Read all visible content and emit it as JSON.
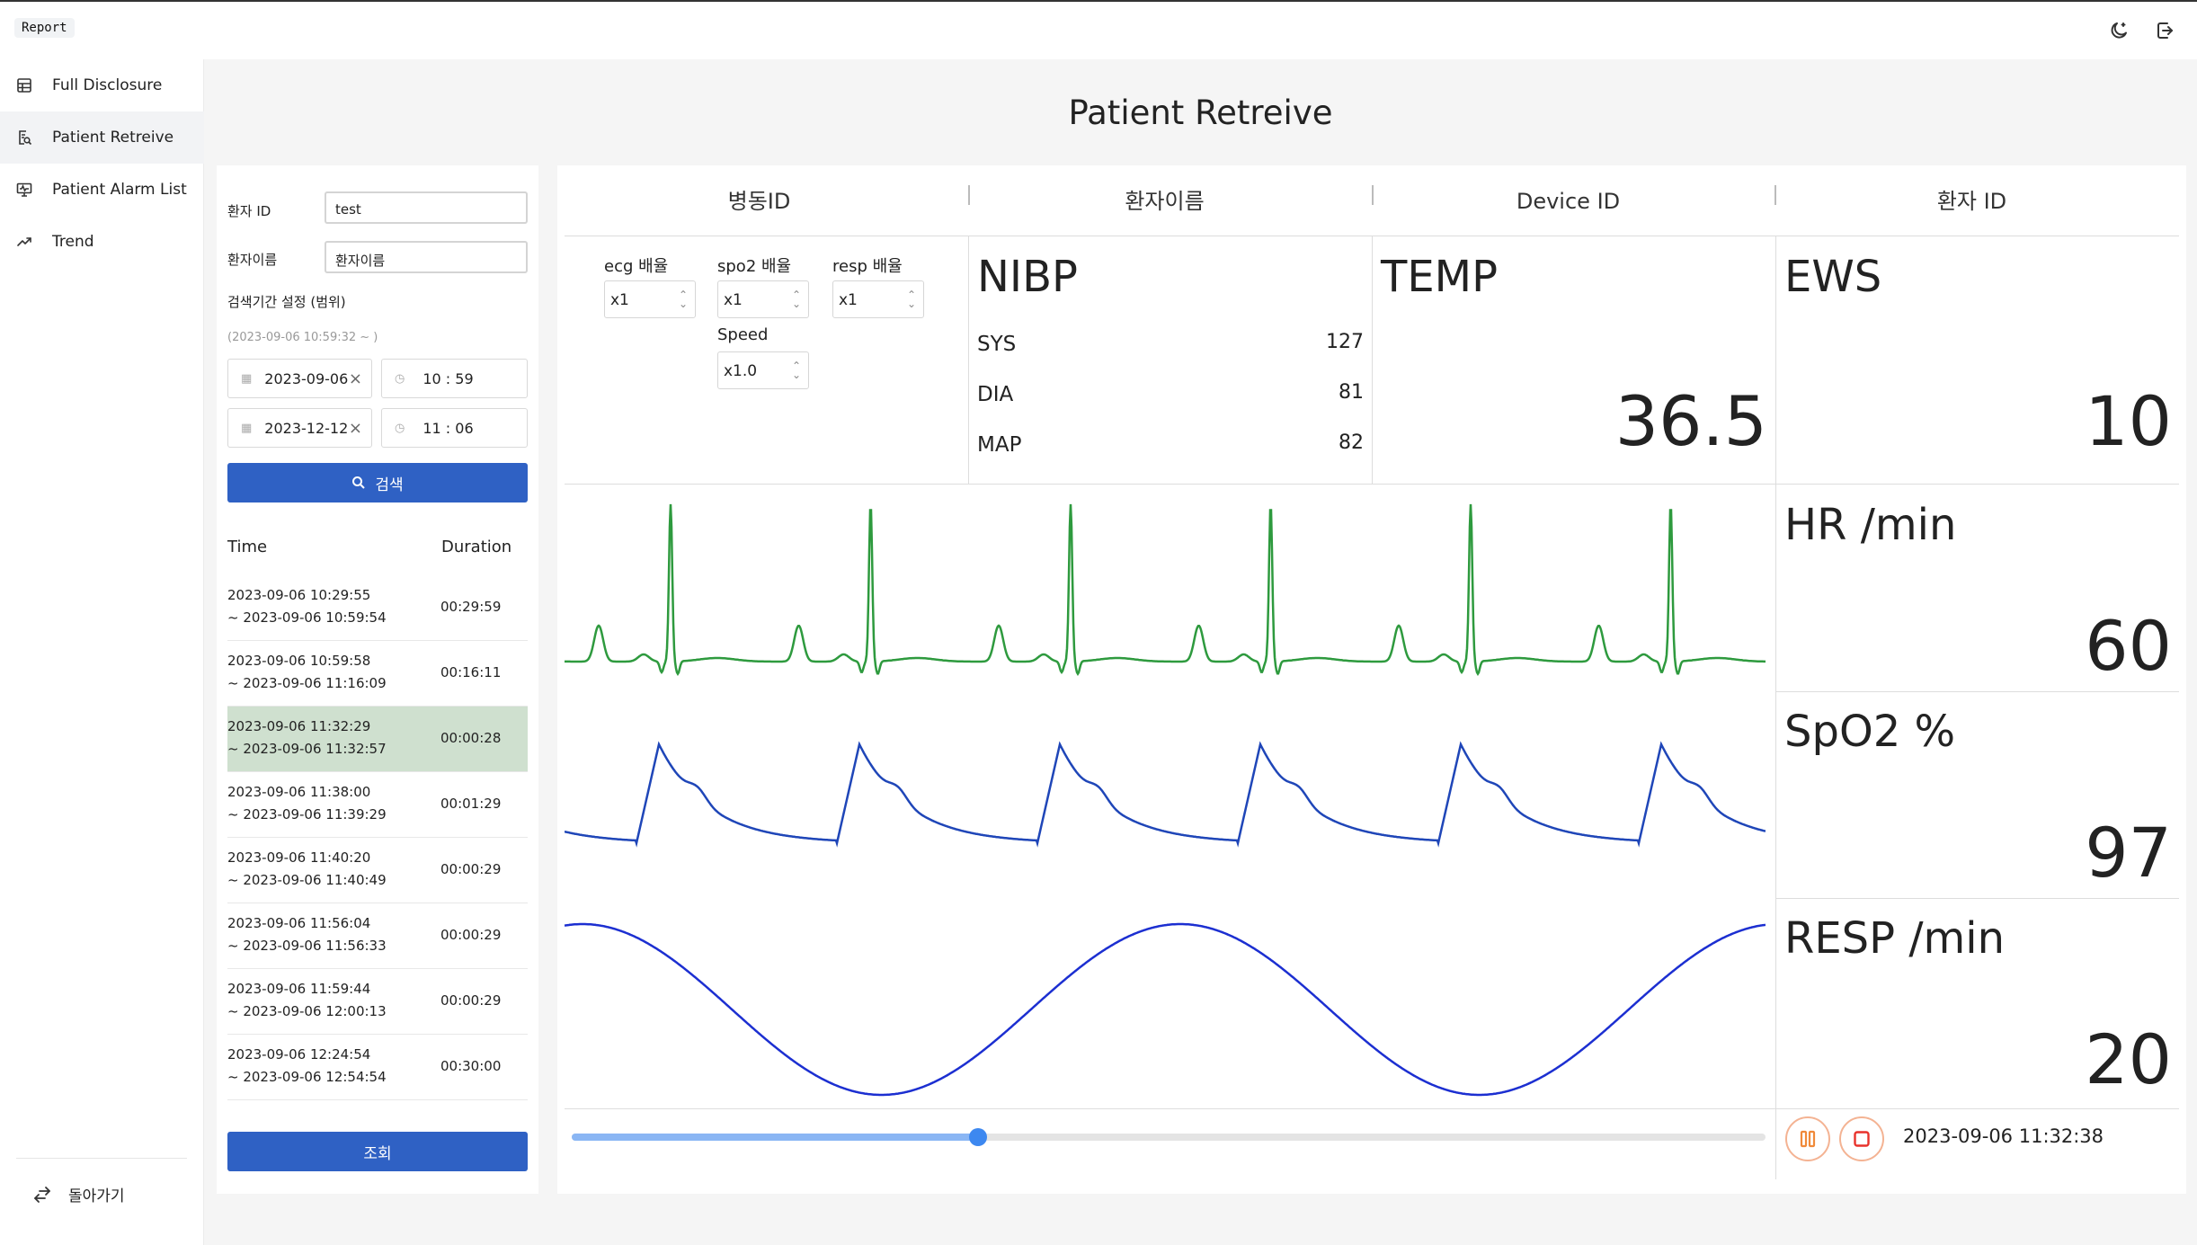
{
  "app": {
    "brand": "Report"
  },
  "sidebar": {
    "items": [
      {
        "label": "Full Disclosure",
        "icon": "table-icon"
      },
      {
        "label": "Patient Retreive",
        "icon": "search-document-icon"
      },
      {
        "label": "Patient Alarm List",
        "icon": "monitor-alarm-icon"
      },
      {
        "label": "Trend",
        "icon": "trend-icon"
      }
    ],
    "back_label": "돌아가기"
  },
  "page_title": "Patient Retreive",
  "search": {
    "patient_id_label": "환자 ID",
    "patient_id_value": "test",
    "patient_name_label": "환자이름",
    "patient_name_value": "환자이름",
    "range_label": "검색기간 설정 (범위)",
    "range_hint": "(2023-09-06 10:59:32 ~ )",
    "start_date": "2023-09-06",
    "start_time": "10 : 59",
    "end_date": "2023-12-12",
    "end_time": "11 : 06",
    "search_button": "검색"
  },
  "records": {
    "col_time": "Time",
    "col_duration": "Duration",
    "rows": [
      {
        "start": "2023-09-06 10:29:55",
        "end": "~ 2023-09-06 10:59:54",
        "duration": "00:29:59"
      },
      {
        "start": "2023-09-06 10:59:58",
        "end": "~ 2023-09-06 11:16:09",
        "duration": "00:16:11"
      },
      {
        "start": "2023-09-06 11:32:29",
        "end": "~ 2023-09-06 11:32:57",
        "duration": "00:00:28"
      },
      {
        "start": "2023-09-06 11:38:00",
        "end": "~ 2023-09-06 11:39:29",
        "duration": "00:01:29"
      },
      {
        "start": "2023-09-06 11:40:20",
        "end": "~ 2023-09-06 11:40:49",
        "duration": "00:00:29"
      },
      {
        "start": "2023-09-06 11:56:04",
        "end": "~ 2023-09-06 11:56:33",
        "duration": "00:00:29"
      },
      {
        "start": "2023-09-06 11:59:44",
        "end": "~ 2023-09-06 12:00:13",
        "duration": "00:00:29"
      },
      {
        "start": "2023-09-06 12:24:54",
        "end": "~ 2023-09-06 12:54:54",
        "duration": "00:30:00"
      }
    ],
    "selected_index": 2,
    "lookup_button": "조회"
  },
  "monitor": {
    "headers": [
      "병동ID",
      "환자이름",
      "Device ID",
      "환자 ID"
    ],
    "multipliers": {
      "ecg_label": "ecg 배율",
      "ecg_value": "x1",
      "spo2_label": "spo2 배율",
      "spo2_value": "x1",
      "resp_label": "resp 배율",
      "resp_value": "x1",
      "speed_label": "Speed",
      "speed_value": "x1.0"
    },
    "nibp": {
      "title": "NIBP",
      "sys_label": "SYS",
      "sys": "127",
      "dia_label": "DIA",
      "dia": "81",
      "map_label": "MAP",
      "map": "82"
    },
    "temp": {
      "title": "TEMP",
      "value": "36.5"
    },
    "ews": {
      "title": "EWS",
      "value": "10"
    },
    "hr": {
      "title": "HR /min",
      "value": "60"
    },
    "spo2": {
      "title": "SpO2 %",
      "value": "97"
    },
    "resp": {
      "title": "RESP /min",
      "value": "20"
    },
    "playback": {
      "progress_percent": 34,
      "timestamp": "2023-09-06 11:32:38"
    },
    "colors": {
      "ecg": "#2e9a3e",
      "pleth": "#1f46b8",
      "resp": "#1c2fd1",
      "accent": "#3d88f0",
      "control_stop": "#e8322b",
      "control_pause": "#f08a3a"
    }
  }
}
